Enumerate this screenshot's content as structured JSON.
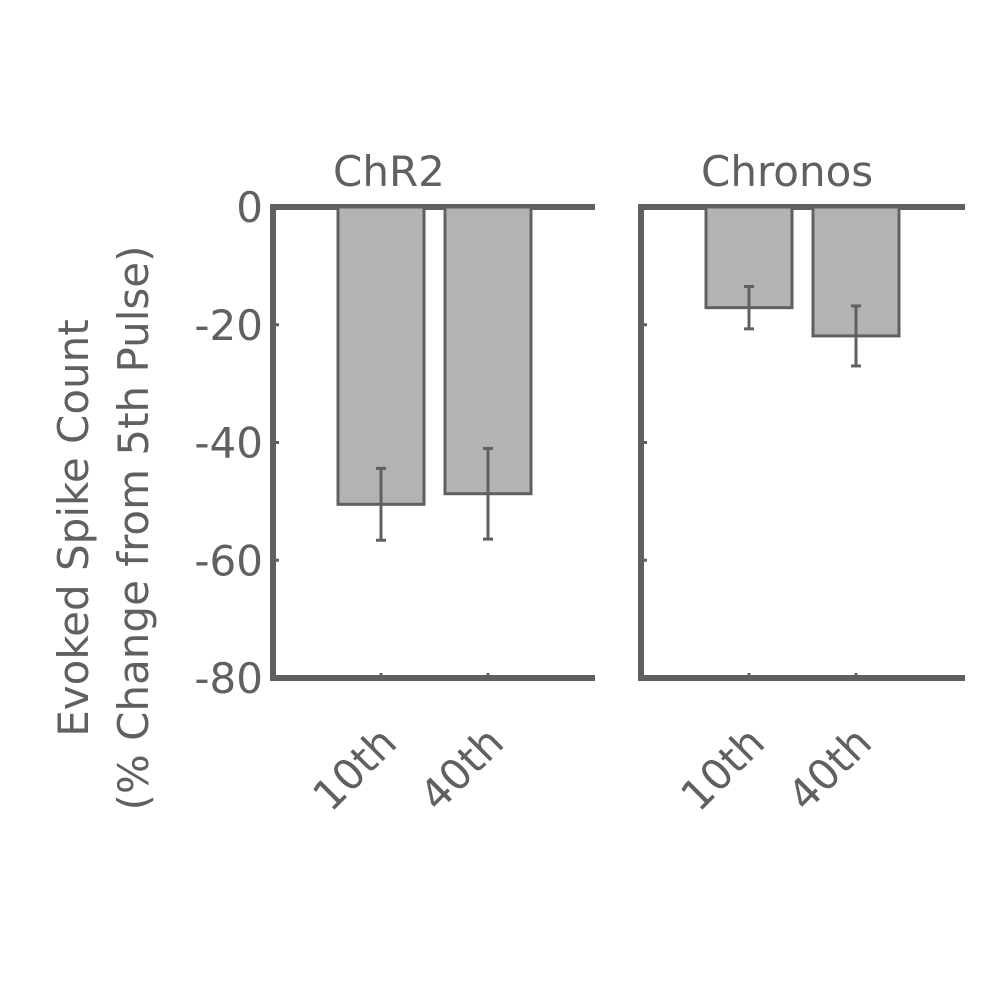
{
  "chart_data": [
    {
      "type": "bar",
      "title": "ChR2",
      "ylabel": [
        "Evoked Spike Count",
        "(% Change from 5th Pulse)"
      ],
      "categories": [
        "10th",
        "40th"
      ],
      "values": [
        -50.5,
        -48.7
      ],
      "errors": [
        6.1,
        7.7
      ],
      "color": "#b3b3b3",
      "ylim": [
        -80,
        0
      ],
      "yticks": [
        -80,
        -60,
        -40,
        -20,
        0
      ],
      "show_tick_labels": true
    },
    {
      "type": "bar",
      "title": "Chronos",
      "categories": [
        "10th",
        "40th"
      ],
      "values": [
        -17.1,
        -21.9
      ],
      "errors": [
        3.6,
        5.1
      ],
      "color": "#b3b3b3",
      "ylim": [
        -80,
        0
      ],
      "yticks": [
        -80,
        -60,
        -40,
        -20,
        0
      ],
      "show_tick_labels": false
    }
  ]
}
